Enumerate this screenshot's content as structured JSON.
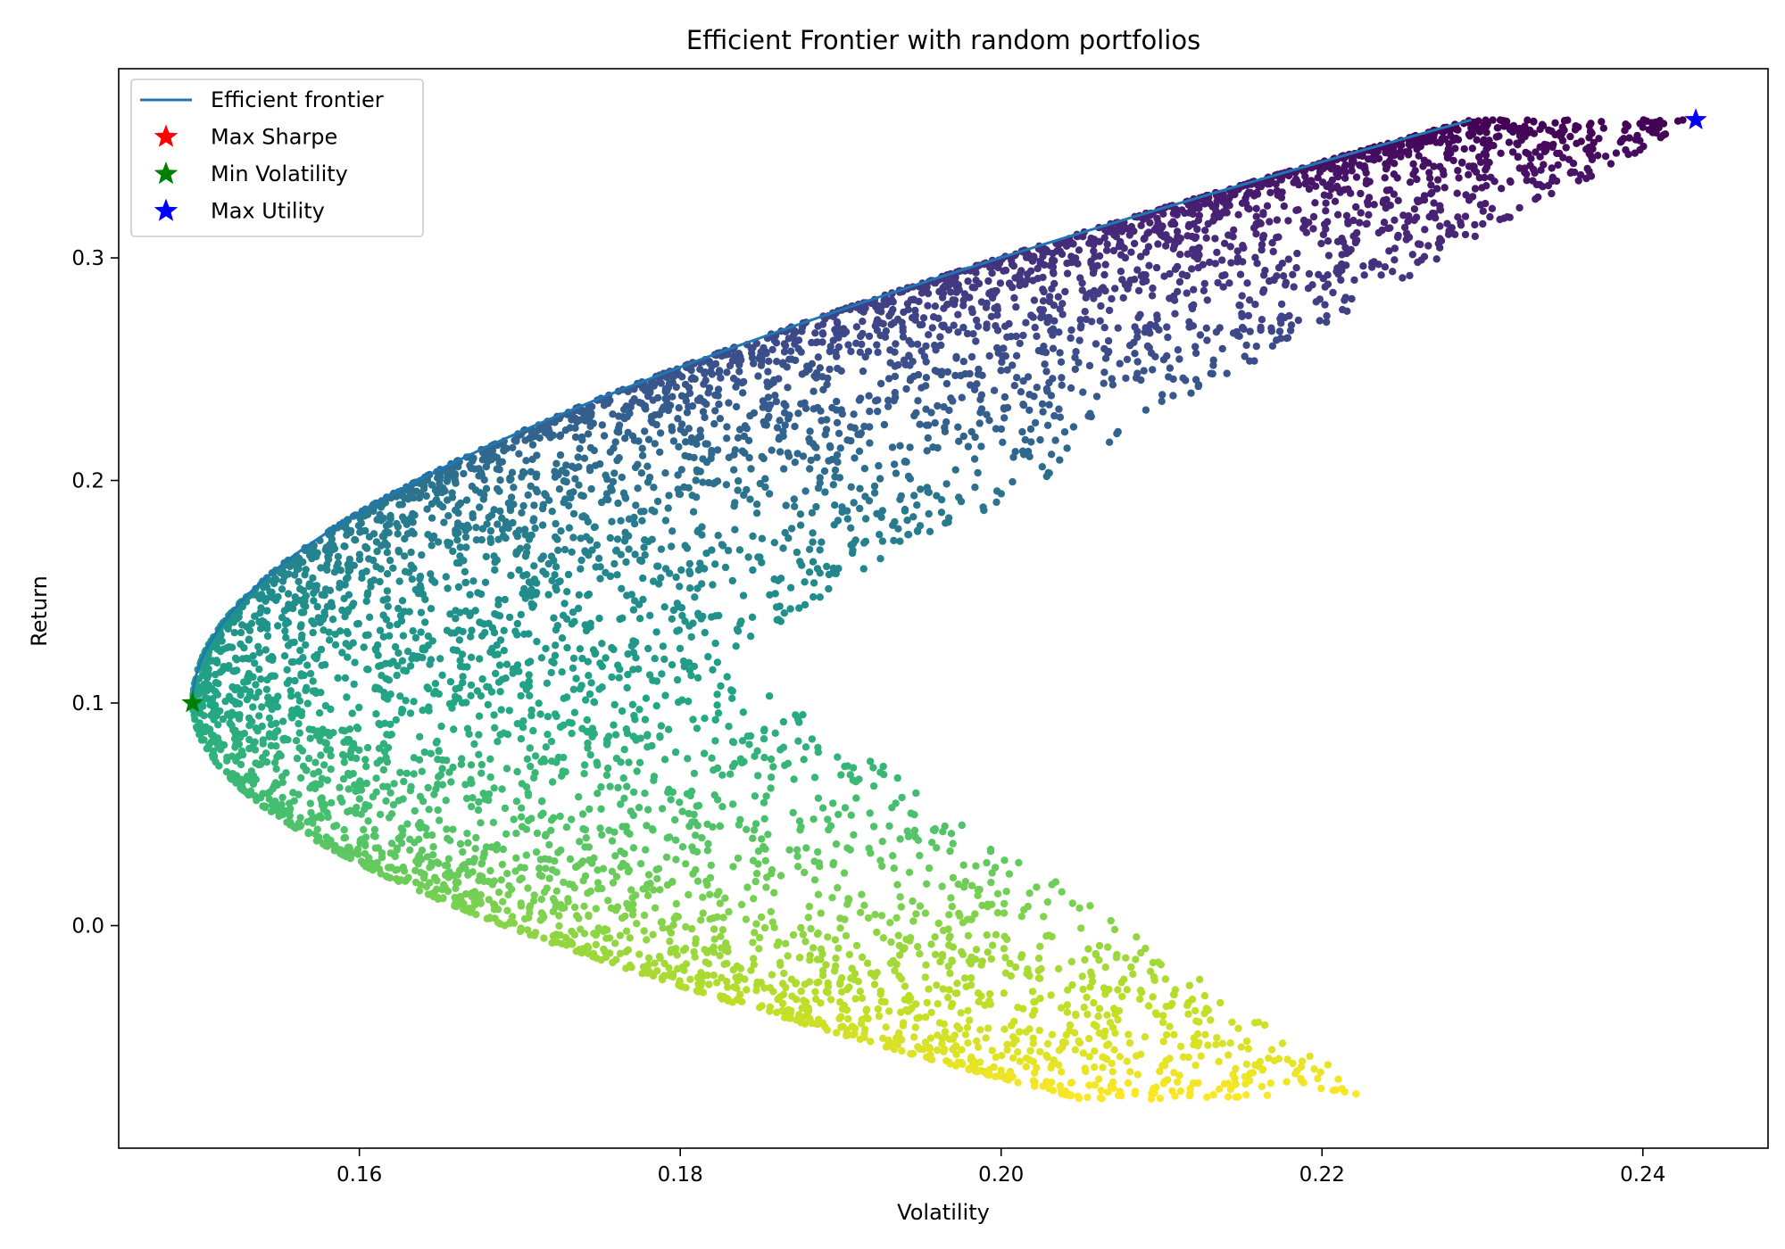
{
  "chart_data": {
    "type": "scatter",
    "title": "Efficient Frontier with random portfolios",
    "xlabel": "Volatility",
    "ylabel": "Return",
    "xlim": [
      0.145,
      0.2478
    ],
    "ylim": [
      -0.1,
      0.385
    ],
    "xticks": [
      {
        "value": 0.16,
        "label": "0.16"
      },
      {
        "value": 0.18,
        "label": "0.18"
      },
      {
        "value": 0.2,
        "label": "0.20"
      },
      {
        "value": 0.22,
        "label": "0.22"
      },
      {
        "value": 0.24,
        "label": "0.24"
      }
    ],
    "yticks": [
      {
        "value": 0.0,
        "label": "0.0"
      },
      {
        "value": 0.1,
        "label": "0.1"
      },
      {
        "value": 0.2,
        "label": "0.2"
      },
      {
        "value": 0.3,
        "label": "0.3"
      }
    ],
    "grid": false,
    "legend_position": "upper-left",
    "colormap": "viridis",
    "colors": {
      "frontier": "#1f77b4",
      "max_sharpe": "#ff0000",
      "min_volatility": "#008000",
      "max_utility": "#0000ff"
    },
    "frontier": {
      "name": "Efficient frontier",
      "type": "line",
      "x": [
        0.1496,
        0.1502,
        0.152,
        0.155,
        0.1593,
        0.1648,
        0.1716,
        0.1796,
        0.189,
        0.1997,
        0.2118,
        0.2251,
        0.2398,
        0.2433
      ],
      "y": [
        0.1,
        0.125,
        0.15,
        0.175,
        0.2,
        0.225,
        0.25,
        0.275,
        0.3,
        0.325,
        0.35,
        0.375,
        0.4,
        0.362
      ]
    },
    "random_portfolios": {
      "type": "scatter",
      "description_only": false,
      "envelope": {
        "inner_left_vertex": [
          0.1496,
          0.1
        ],
        "top_tip": [
          0.2433,
          0.362
        ],
        "bottom_tip": [
          0.2236,
          -0.078
        ],
        "notch_vertex": [
          0.1825,
          0.121
        ]
      },
      "color_by": "return",
      "count_estimate": 10000
    },
    "markers": [
      {
        "name": "Max Sharpe",
        "marker": "star",
        "x": 0.2433,
        "y": 0.362,
        "color": "#ff0000"
      },
      {
        "name": "Min Volatility",
        "marker": "star",
        "x": 0.1496,
        "y": 0.1,
        "color": "#008000"
      },
      {
        "name": "Max Utility",
        "marker": "star",
        "x": 0.2433,
        "y": 0.362,
        "color": "#0000ff"
      }
    ],
    "legend": [
      {
        "label": "Efficient frontier",
        "kind": "line",
        "color": "#1f77b4"
      },
      {
        "label": "Max Sharpe",
        "kind": "star",
        "color": "#ff0000"
      },
      {
        "label": "Min Volatility",
        "kind": "star",
        "color": "#008000"
      },
      {
        "label": "Max Utility",
        "kind": "star",
        "color": "#0000ff"
      }
    ]
  }
}
